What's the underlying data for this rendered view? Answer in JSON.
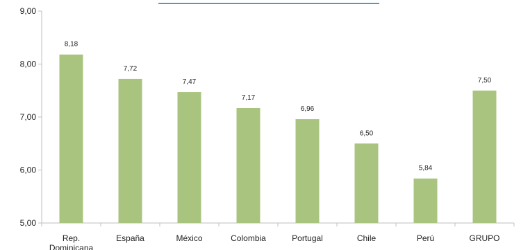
{
  "chart_data": {
    "type": "bar",
    "categories": [
      "Rep. Dominicana",
      "España",
      "México",
      "Colombia",
      "Portugal",
      "Chile",
      "Perú",
      "GRUPO"
    ],
    "values": [
      8.18,
      7.72,
      7.47,
      7.17,
      6.96,
      6.5,
      5.84,
      7.5
    ],
    "value_labels": [
      "8,18",
      "7,72",
      "7,47",
      "7,17",
      "6,96",
      "6,50",
      "5,84",
      "7,50"
    ],
    "ylim": [
      5,
      9
    ],
    "yticks": [
      5,
      6,
      7,
      8,
      9
    ],
    "ytick_labels": [
      "5,00",
      "6,00",
      "7,00",
      "8,00",
      "9,00"
    ],
    "title": "",
    "xlabel": "",
    "ylabel": "",
    "grid": false,
    "legend": "none",
    "colors": {
      "bar": "#a9c47f",
      "axis": "#bfbfbf",
      "accent_bar": "#3aa0d8"
    }
  }
}
